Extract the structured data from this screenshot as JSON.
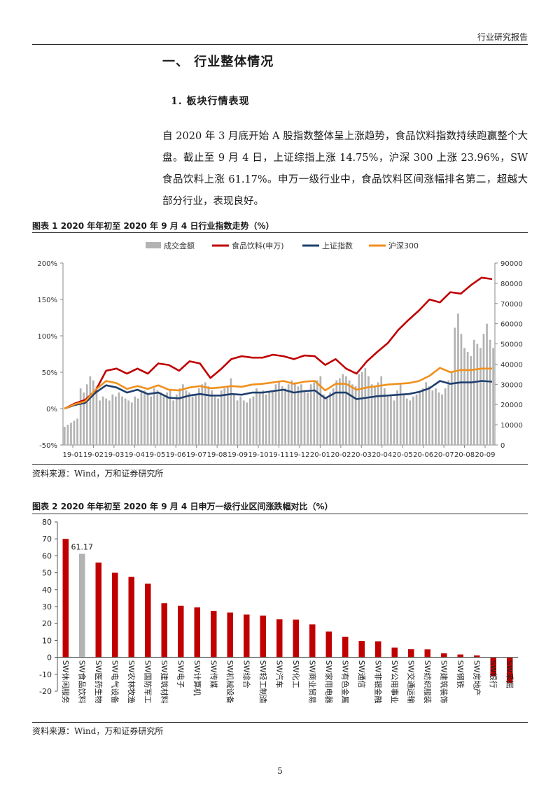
{
  "header": {
    "label": "行业研究报告"
  },
  "section": {
    "title": "一、  行业整体情况"
  },
  "subsection": {
    "title": "1.    板块行情表现"
  },
  "body": {
    "paragraph": "自 2020 年 3 月底开始 A 股指数整体呈上涨趋势，食品饮料指数持续跑赢整个大盘。截止至 9 月 4 日，上证综指上涨 14.75%，沪深 300 上涨 23.96%，SW 食品饮料上涨 61.17%。申万一级行业中，食品饮料区间涨幅排名第二，超越大部分行业，表现良好。"
  },
  "figure1": {
    "caption": "图表 1   2020 年年初至 2020 年 9 月 4 日行业指数走势（%）",
    "source": "资料来源：Wind，万和证券研究所"
  },
  "figure2": {
    "caption": "图表 2   2020 年年初至 2020 年 9 月 4 日申万一级行业区间涨跌幅对比（%）",
    "source": "资料来源：Wind，万和证券研究所"
  },
  "page": {
    "number": "5"
  },
  "chart_data": [
    {
      "type": "line",
      "legend_position": "top",
      "legend": [
        "成交金额",
        "食品饮料(申万)",
        "上证指数",
        "沪深300"
      ],
      "x_ticks": [
        "19-01",
        "19-02",
        "19-03",
        "19-04",
        "19-05",
        "19-06",
        "19-07",
        "19-08",
        "19-09",
        "19-10",
        "19-11",
        "19-12",
        "20-01",
        "20-02",
        "20-03",
        "20-04",
        "20-05",
        "20-06",
        "20-07",
        "20-08",
        "20-09"
      ],
      "y_left_ticks": [
        "200%",
        "150%",
        "100%",
        "50%",
        "0%",
        "-50%"
      ],
      "y_left_range": [
        -50,
        200
      ],
      "y_right_ticks": [
        "90000",
        "80000",
        "70000",
        "60000",
        "50000",
        "40000",
        "30000",
        "20000",
        "10000",
        "0"
      ],
      "y_right_range": [
        0,
        90000
      ],
      "colors": {
        "volume": "#b3b3b3",
        "food": "#c00000",
        "sh": "#1f3f6e",
        "hs300": "#f0901c"
      },
      "series": [
        {
          "name": "食品饮料(申万)",
          "axis": "left",
          "values": [
            0,
            7,
            12,
            25,
            52,
            55,
            48,
            55,
            48,
            62,
            60,
            52,
            65,
            62,
            42,
            54,
            68,
            72,
            70,
            70,
            74,
            72,
            68,
            73,
            72,
            60,
            68,
            55,
            48,
            65,
            78,
            90,
            108,
            122,
            135,
            150,
            146,
            160,
            158,
            170,
            180,
            178
          ]
        },
        {
          "name": "上证指数",
          "axis": "left",
          "values": [
            0,
            5,
            8,
            22,
            32,
            29,
            22,
            26,
            20,
            22,
            15,
            14,
            18,
            20,
            18,
            18,
            20,
            19,
            22,
            22,
            24,
            26,
            22,
            24,
            25,
            14,
            22,
            22,
            13,
            15,
            17,
            18,
            19,
            20,
            23,
            28,
            38,
            34,
            36,
            36,
            38,
            37
          ]
        },
        {
          "name": "沪深300",
          "axis": "left",
          "values": [
            0,
            6,
            10,
            26,
            38,
            35,
            27,
            31,
            27,
            32,
            26,
            25,
            29,
            31,
            28,
            29,
            31,
            30,
            33,
            34,
            36,
            38,
            34,
            37,
            38,
            25,
            34,
            34,
            26,
            29,
            31,
            33,
            34,
            35,
            38,
            45,
            56,
            50,
            53,
            53,
            55,
            55
          ]
        }
      ],
      "volume": {
        "name": "成交金额",
        "axis": "right",
        "values": [
          9000,
          10000,
          11000,
          12000,
          13000,
          28000,
          26000,
          30000,
          34000,
          32000,
          29000,
          22000,
          24000,
          23000,
          22000,
          25000,
          24000,
          26000,
          24000,
          23000,
          22000,
          21000,
          24000,
          23000,
          26000,
          27000,
          25000,
          24000,
          28000,
          27000,
          26000,
          24000,
          26000,
          27000,
          22000,
          25000,
          28000,
          30000,
          27000,
          26000,
          24000,
          25000,
          28000,
          30000,
          31000,
          29000,
          27000,
          24000,
          23000,
          27000,
          28000,
          29000,
          33000,
          25000,
          22000,
          24000,
          22000,
          21000,
          23000,
          24000,
          28000,
          26000,
          27000,
          25000,
          26000,
          27000,
          30000,
          31000,
          29000,
          28000,
          30000,
          32000,
          31000,
          29000,
          30000,
          27000,
          26000,
          30000,
          31000,
          32000,
          34000,
          25000,
          24000,
          26000,
          28000,
          32000,
          33000,
          35000,
          34000,
          32000,
          30000,
          29000,
          35000,
          36000,
          38000,
          34000,
          30000,
          29000,
          31000,
          34000,
          28000,
          24000,
          25000,
          22000,
          27000,
          30000,
          25000,
          23000,
          22000,
          24000,
          25000,
          26000,
          28000,
          31000,
          29000,
          27000,
          28000,
          26000,
          25000,
          28000,
          32000,
          36000,
          58000,
          65000,
          55000,
          48000,
          46000,
          44000,
          52000,
          50000,
          48000,
          55000,
          60000,
          52000,
          48000
        ]
      }
    },
    {
      "type": "bar",
      "y_ticks": [
        "80",
        "70",
        "60",
        "50",
        "40",
        "30",
        "20",
        "10",
        "0",
        "-10",
        "-20"
      ],
      "ylim": [
        -20,
        80
      ],
      "colors": {
        "default": "#c00000",
        "highlight": "#b3b3b3"
      },
      "highlight_category": "SW食品饮料",
      "data_labels": [
        {
          "category": "SW食品饮料",
          "text": "61.17"
        }
      ],
      "categories": [
        "SW休闲服务",
        "SW食品饮料",
        "SW医药生物",
        "SW电气设备",
        "SW农林牧渔",
        "SW国防军工",
        "SW建筑材料",
        "SW电子",
        "SW计算机",
        "SW传媒",
        "SW机械设备",
        "SW综合",
        "SW轻工制造",
        "SW汽车",
        "SW化工",
        "SW商业贸易",
        "SW家用电器",
        "SW有色金属",
        "SW通信",
        "SW非银金融",
        "SW公用事业",
        "SW交通运输",
        "SW纺织服装",
        "SW建筑装饰",
        "SW钢铁",
        "SW房地产",
        "SW银行",
        "SW采掘"
      ],
      "values": [
        70,
        61.17,
        56,
        50,
        47.5,
        43.5,
        32,
        30.5,
        29.5,
        27.5,
        26.5,
        25.3,
        24.7,
        22.5,
        22.3,
        19.5,
        15.3,
        12.2,
        9.7,
        9.5,
        5.8,
        4.8,
        4.7,
        2.5,
        1.7,
        1.2,
        -11,
        -15
      ]
    }
  ]
}
